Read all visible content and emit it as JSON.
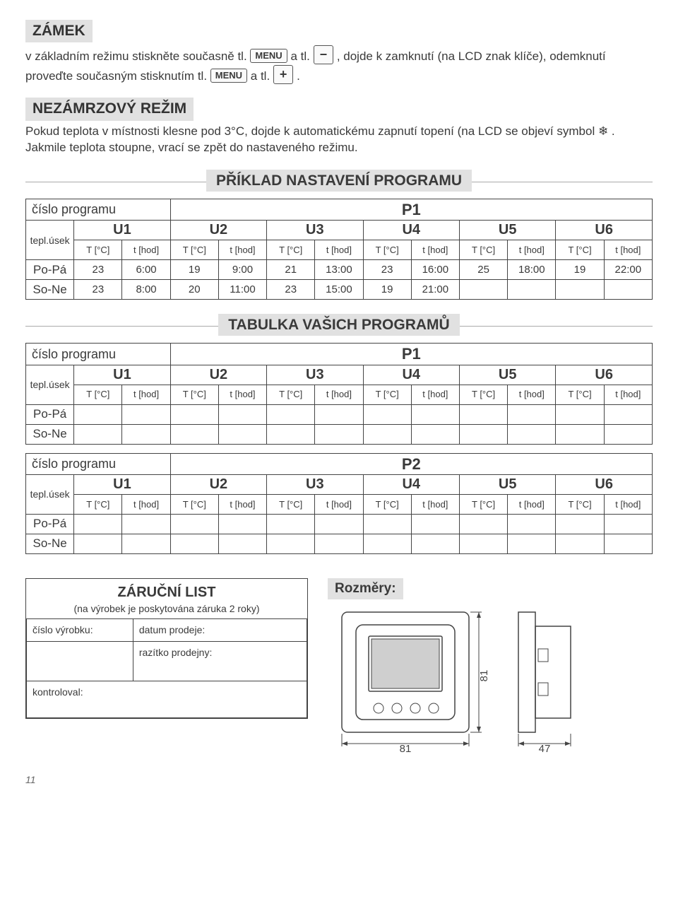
{
  "lock": {
    "title": "ZÁMEK",
    "text1a": "v základním režimu stiskněte současně tl. ",
    "text1b": " a tl. ",
    "text1c": " , dojde k zamknutí (na LCD znak klíče), odemknutí proveďte současným stisknutím tl. ",
    "text1d": " a tl. ",
    "text1e": " .",
    "btnMenu": "MENU",
    "btnMinus": "−",
    "btnPlus": "+"
  },
  "antifrost": {
    "title": "NEZÁMRZOVÝ REŽIM",
    "text": "Pokud teplota v místnosti klesne pod 3°C, dojde k automatickému zapnutí topení (na LCD se objeví symbol ❄ . Jakmile teplota stoupne, vrací se zpět do nastaveného režimu."
  },
  "example": {
    "heading": "PŘÍKLAD NASTAVENÍ PROGRAMU",
    "progLabel": "číslo programu",
    "progNum": "P1",
    "segLabel": "tepl.úsek",
    "uLabels": [
      "U1",
      "U2",
      "U3",
      "U4",
      "U5",
      "U6"
    ],
    "subT": "T [°C]",
    "subH": "t [hod]",
    "rows": [
      {
        "label": "Po-Pá",
        "cells": [
          "23",
          "6:00",
          "19",
          "9:00",
          "21",
          "13:00",
          "23",
          "16:00",
          "25",
          "18:00",
          "19",
          "22:00"
        ]
      },
      {
        "label": "So-Ne",
        "cells": [
          "23",
          "8:00",
          "20",
          "11:00",
          "23",
          "15:00",
          "19",
          "21:00",
          "",
          "",
          "",
          ""
        ]
      }
    ]
  },
  "blank": {
    "heading": "TABULKA VAŠICH PROGRAMŮ",
    "tables": [
      {
        "progNum": "P1"
      },
      {
        "progNum": "P2"
      }
    ],
    "rowLabels": [
      "Po-Pá",
      "So-Ne"
    ]
  },
  "warranty": {
    "title": "ZÁRUČNÍ LIST",
    "subtitle": "(na výrobek je poskytována záruka 2 roky)",
    "fields": {
      "prodnum": "číslo výrobku:",
      "date": "datum prodeje:",
      "stamp": "razítko prodejny:",
      "checked": "kontroloval:"
    }
  },
  "dims": {
    "title": "Rozměry:",
    "w": "81",
    "h": "81",
    "d": "47"
  },
  "page": "11",
  "colors": {
    "bgGrey": "#e1e1e1",
    "border": "#444444",
    "text": "#3a3a3a"
  }
}
